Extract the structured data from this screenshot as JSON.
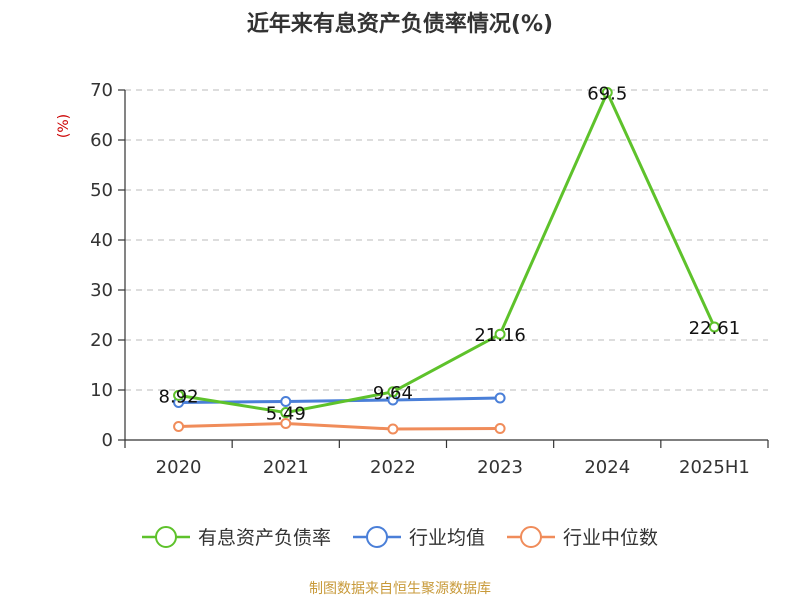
{
  "chart_data": {
    "type": "line",
    "title": "近年来有息资产负债率情况(%)",
    "y_unit": "(%)",
    "categories": [
      "2020",
      "2021",
      "2022",
      "2023",
      "2024",
      "2025H1"
    ],
    "ylim": [
      0,
      70
    ],
    "yticks": [
      0,
      10,
      20,
      30,
      40,
      50,
      60,
      70
    ],
    "grid": true,
    "legend_position": "bottom",
    "series": [
      {
        "name": "有息资产负债率",
        "color": "#5ec22b",
        "values": [
          8.92,
          5.49,
          9.64,
          21.16,
          69.5,
          22.61
        ],
        "labels": [
          "8.92",
          "5.49",
          "9.64",
          "21.16",
          "69.5",
          "22.61"
        ]
      },
      {
        "name": "行业均值",
        "color": "#4a7fd8",
        "values": [
          7.5,
          7.7,
          8.0,
          8.4,
          null,
          null
        ]
      },
      {
        "name": "行业中位数",
        "color": "#f08c5a",
        "values": [
          2.7,
          3.3,
          2.2,
          2.3,
          null,
          null
        ]
      }
    ]
  },
  "source_note": "制图数据来自恒生聚源数据库",
  "colors": {
    "axis": "#333333",
    "grid": "#bbbbbb",
    "unit": "#cc0000",
    "source": "#c89a3a"
  }
}
